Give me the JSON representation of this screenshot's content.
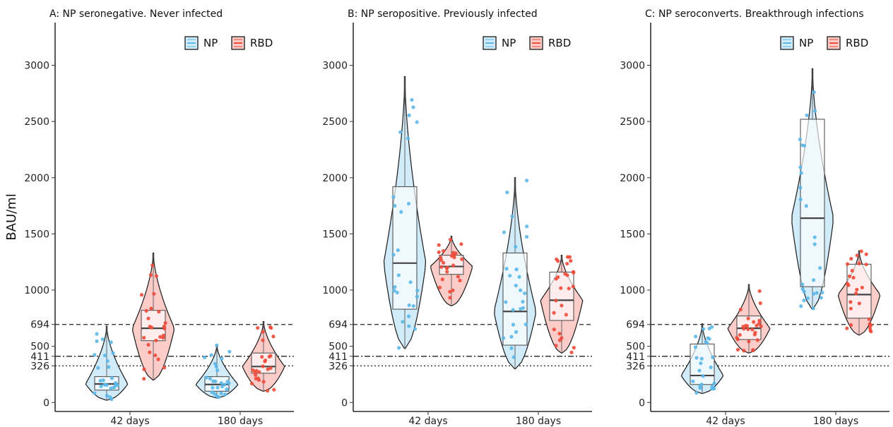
{
  "chart_data": [
    {
      "type": "violin-box",
      "title": "A: NP seronegative. Never infected",
      "ylabel": "BAU/ml",
      "categories": [
        "42 days",
        "180 days"
      ],
      "legend": [
        "NP",
        "RBD"
      ],
      "legend_position": "top-right",
      "ylim": [
        -80,
        3380
      ],
      "yticks": [
        0,
        326,
        411,
        500,
        694,
        1000,
        1500,
        2000,
        2500,
        3000
      ],
      "reference_lines": [
        {
          "value": 694,
          "style": "dashed"
        },
        {
          "value": 411,
          "style": "dashdot"
        },
        {
          "value": 326,
          "style": "dotted"
        }
      ],
      "series": [
        {
          "name": "NP",
          "color": "#5bb8e8",
          "groups": [
            {
              "category": "42 days",
              "min": 20,
              "q1": 110,
              "median": 165,
              "q3": 230,
              "max": 680
            },
            {
              "category": "180 days",
              "min": 40,
              "q1": 100,
              "median": 160,
              "q3": 230,
              "max": 510
            }
          ]
        },
        {
          "name": "RBD",
          "color": "#f04a3a",
          "groups": [
            {
              "category": "42 days",
              "min": 200,
              "q1": 550,
              "median": 660,
              "q3": 820,
              "max": 1330
            },
            {
              "category": "180 days",
              "min": 100,
              "q1": 260,
              "median": 320,
              "q3": 440,
              "max": 720
            }
          ]
        }
      ]
    },
    {
      "type": "violin-box",
      "title": "B: NP seropositive. Previously infected",
      "ylabel": "",
      "categories": [
        "42 days",
        "180 days"
      ],
      "legend": [
        "NP",
        "RBD"
      ],
      "legend_position": "top-right",
      "ylim": [
        -80,
        3380
      ],
      "yticks": [
        0,
        326,
        411,
        500,
        694,
        1000,
        1500,
        2000,
        2500,
        3000
      ],
      "reference_lines": [
        {
          "value": 694,
          "style": "dashed"
        },
        {
          "value": 411,
          "style": "dashdot"
        },
        {
          "value": 326,
          "style": "dotted"
        }
      ],
      "series": [
        {
          "name": "NP",
          "color": "#5bb8e8",
          "groups": [
            {
              "category": "42 days",
              "min": 480,
              "q1": 830,
              "median": 1240,
              "q3": 1920,
              "max": 2900
            },
            {
              "category": "180 days",
              "min": 300,
              "q1": 510,
              "median": 810,
              "q3": 1330,
              "max": 2000
            }
          ]
        },
        {
          "name": "RBD",
          "color": "#f04a3a",
          "groups": [
            {
              "category": "42 days",
              "min": 860,
              "q1": 1140,
              "median": 1210,
              "q3": 1310,
              "max": 1480
            },
            {
              "category": "180 days",
              "min": 440,
              "q1": 730,
              "median": 910,
              "q3": 1160,
              "max": 1310
            }
          ]
        }
      ]
    },
    {
      "type": "violin-box",
      "title": "C: NP seroconverts. Breakthrough infections",
      "ylabel": "",
      "categories": [
        "42 days",
        "180 days"
      ],
      "legend": [
        "NP",
        "RBD"
      ],
      "legend_position": "top-right",
      "ylim": [
        -80,
        3380
      ],
      "yticks": [
        0,
        326,
        411,
        500,
        694,
        1000,
        1500,
        2000,
        2500,
        3000
      ],
      "reference_lines": [
        {
          "value": 694,
          "style": "dashed"
        },
        {
          "value": 411,
          "style": "dashdot"
        },
        {
          "value": 326,
          "style": "dotted"
        }
      ],
      "series": [
        {
          "name": "NP",
          "color": "#5bb8e8",
          "groups": [
            {
              "category": "42 days",
              "min": 80,
              "q1": 160,
              "median": 240,
              "q3": 520,
              "max": 700
            },
            {
              "category": "180 days",
              "min": 830,
              "q1": 1030,
              "median": 1640,
              "q3": 2520,
              "max": 2970
            }
          ]
        },
        {
          "name": "RBD",
          "color": "#f04a3a",
          "groups": [
            {
              "category": "42 days",
              "min": 440,
              "q1": 560,
              "median": 660,
              "q3": 770,
              "max": 1050
            },
            {
              "category": "180 days",
              "min": 600,
              "q1": 750,
              "median": 960,
              "q3": 1230,
              "max": 1350
            }
          ]
        }
      ]
    }
  ]
}
